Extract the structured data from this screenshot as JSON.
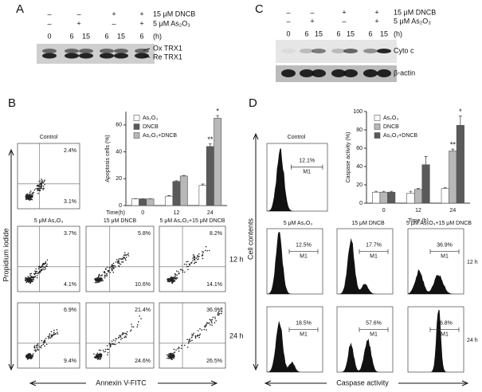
{
  "panel_a": {
    "label": "A",
    "treatments": [
      {
        "name": "15 μM DNCB",
        "signs": [
          "–",
          "–",
          "+",
          "+"
        ]
      },
      {
        "name": "5 μM As₂O₃",
        "signs": [
          "–",
          "+",
          "–",
          "+"
        ]
      }
    ],
    "times": [
      "0",
      "6",
      "15",
      "6",
      "15",
      "6"
    ],
    "time_unit": "(h)",
    "bands": [
      "Ox TRX1",
      "Re TRX1"
    ]
  },
  "panel_c": {
    "label": "C",
    "treatments": [
      {
        "name": "15 μM DNCB",
        "signs": [
          "–",
          "–",
          "+",
          "+"
        ]
      },
      {
        "name": "5 μM As₂O₃",
        "signs": [
          "–",
          "+",
          "–",
          "+"
        ]
      }
    ],
    "times": [
      "0",
      "6",
      "15",
      "6",
      "15",
      "6",
      "15"
    ],
    "time_unit": "(h)",
    "bands": [
      "Cyto c",
      "β-actin"
    ]
  },
  "panel_b": {
    "label": "B",
    "control_title": "Control",
    "control": {
      "upper": "2.4%",
      "lower": "3.1%"
    },
    "column_titles": [
      "5 μM As₂O₃",
      "15 μM DNCB",
      "5 μM As₂O₃+15 μM DNCB"
    ],
    "row_labels": [
      "12 h",
      "24 h"
    ],
    "rows": [
      [
        {
          "upper": "3.7%",
          "lower": "4.1%"
        },
        {
          "upper": "5.8%",
          "lower": "10.6%"
        },
        {
          "upper": "8.2%",
          "lower": "14.1%"
        }
      ],
      [
        {
          "upper": "6.9%",
          "lower": "9.4%"
        },
        {
          "upper": "21.4%",
          "lower": "24.6%"
        },
        {
          "upper": "36.9%",
          "lower": "26.5%"
        }
      ]
    ],
    "y_label": "Propidium iodide",
    "x_label": "Annexin V-FITC"
  },
  "panel_d": {
    "label": "D",
    "control_title": "Control",
    "control": {
      "percent": "12.1%",
      "gate": "M1"
    },
    "column_titles": [
      "5 μM As₂O₃",
      "15 μM DNCB",
      "5 μM As₂O₃+15 μM DNCB"
    ],
    "row_labels": [
      "12 h",
      "24 h"
    ],
    "rows": [
      [
        {
          "percent": "12.5%",
          "gate": "M1"
        },
        {
          "percent": "17.7%",
          "gate": "M1"
        },
        {
          "percent": "36.9%",
          "gate": "M1"
        }
      ],
      [
        {
          "percent": "18.5%",
          "gate": "M1"
        },
        {
          "percent": "57.6%",
          "gate": "M1"
        },
        {
          "percent": "86.8%",
          "gate": "M1"
        }
      ]
    ],
    "y_label": "Cell contents",
    "x_label": "Caspase activity"
  },
  "chart_data": [
    {
      "type": "bar",
      "y_label": "Apoptosis cells (%)",
      "x_label": "Time(h)",
      "categories": [
        "0",
        "12",
        "24"
      ],
      "ylim": [
        0,
        70
      ],
      "yticks": [
        0,
        20,
        40,
        60
      ],
      "series": [
        {
          "name": "As₂O₃",
          "color": "#ffffff",
          "values": [
            5,
            7,
            15
          ],
          "errors": [
            0,
            0.5,
            1
          ],
          "significance": [
            null,
            null,
            null
          ]
        },
        {
          "name": "DNCB",
          "color": "#5a5a5a",
          "values": [
            5,
            18,
            44
          ],
          "errors": [
            0,
            0.5,
            2
          ],
          "significance": [
            null,
            null,
            "**"
          ]
        },
        {
          "name": "As₂O₃+DNCB",
          "color": "#b8b8b8",
          "values": [
            5,
            22,
            65
          ],
          "errors": [
            0,
            0.5,
            2
          ],
          "significance": [
            null,
            null,
            "*"
          ]
        }
      ]
    },
    {
      "type": "bar",
      "y_label": "Caspase activity (%)",
      "x_label": "Time (h)",
      "categories": [
        "0",
        "12",
        "24"
      ],
      "ylim": [
        0,
        100
      ],
      "yticks": [
        0,
        20,
        40,
        60,
        80,
        100
      ],
      "series": [
        {
          "name": "As₂O₃",
          "color": "#ffffff",
          "values": [
            12,
            11,
            16
          ],
          "errors": [
            1,
            2,
            1
          ],
          "significance": [
            null,
            null,
            null
          ]
        },
        {
          "name": "DNCB",
          "color": "#b8b8b8",
          "values": [
            12,
            15,
            57
          ],
          "errors": [
            1,
            1,
            2
          ],
          "significance": [
            null,
            null,
            "**"
          ]
        },
        {
          "name": "As₂O₃+DNCB",
          "color": "#5a5a5a",
          "values": [
            12,
            42,
            85
          ],
          "errors": [
            1,
            9,
            10
          ],
          "significance": [
            null,
            null,
            "*"
          ]
        }
      ]
    }
  ]
}
